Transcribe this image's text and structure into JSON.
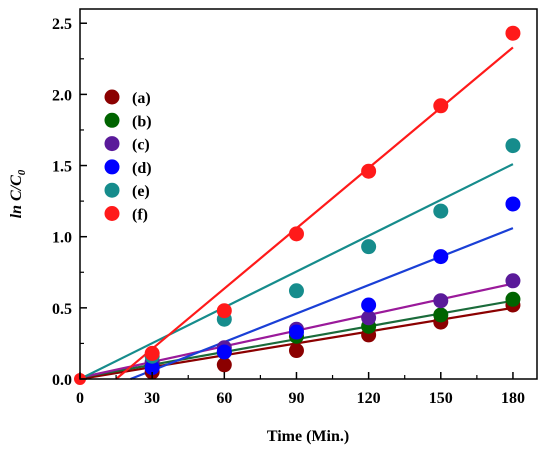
{
  "chart_data": {
    "type": "scatter",
    "title": "",
    "xlabel": "Time (Min.)",
    "ylabel_main": "ln C/C",
    "ylabel_sub": "0",
    "xlim": [
      0,
      190
    ],
    "ylim": [
      0,
      2.6
    ],
    "xticks": [
      0,
      30,
      60,
      90,
      120,
      150,
      180
    ],
    "xtick_labels": [
      "0",
      "30",
      "60",
      "90",
      "120",
      "150",
      "180"
    ],
    "yticks": [
      0,
      0.5,
      1.0,
      1.5,
      2.0,
      2.5
    ],
    "ytick_labels": [
      "0.0",
      "0.5",
      "1.0",
      "1.5",
      "2.0",
      "2.5"
    ],
    "legend_placement": "upper-left",
    "x": [
      0,
      30,
      60,
      90,
      120,
      150,
      180
    ],
    "series": [
      {
        "name": "(a)",
        "color": "#8b0000",
        "line_color": "#8b0000",
        "values": [
          0.0,
          0.05,
          0.1,
          0.2,
          0.31,
          0.4,
          0.52
        ],
        "fit": [
          [
            0,
            0.0
          ],
          [
            180,
            0.5
          ]
        ]
      },
      {
        "name": "(b)",
        "color": "#006400",
        "line_color": "#1a6b3a",
        "values": [
          0.0,
          0.1,
          0.19,
          0.3,
          0.37,
          0.45,
          0.56
        ],
        "fit": [
          [
            0,
            0.01
          ],
          [
            180,
            0.55
          ]
        ]
      },
      {
        "name": "(c)",
        "color": "#5a1a9a",
        "line_color": "#9a1a9a",
        "values": [
          0.0,
          0.12,
          0.22,
          0.35,
          0.43,
          0.55,
          0.69
        ],
        "fit": [
          [
            0,
            0.01
          ],
          [
            180,
            0.67
          ]
        ]
      },
      {
        "name": "(d)",
        "color": "#0000ff",
        "line_color": "#1a3fd6",
        "values": [
          0.0,
          0.08,
          0.19,
          0.33,
          0.52,
          0.86,
          1.23
        ],
        "fit": [
          [
            21,
            0.0
          ],
          [
            180,
            1.06
          ]
        ]
      },
      {
        "name": "(e)",
        "color": "#168c8c",
        "line_color": "#168c8c",
        "values": [
          0.0,
          0.16,
          0.42,
          0.62,
          0.93,
          1.18,
          1.64
        ],
        "fit": [
          [
            0,
            0.0
          ],
          [
            180,
            1.51
          ]
        ]
      },
      {
        "name": "(f)",
        "color": "#ff1a1a",
        "line_color": "#ff1a1a",
        "values": [
          0.0,
          0.18,
          0.48,
          1.02,
          1.46,
          1.92,
          2.43
        ],
        "fit": [
          [
            15,
            0.0
          ],
          [
            180,
            2.33
          ]
        ]
      }
    ]
  }
}
